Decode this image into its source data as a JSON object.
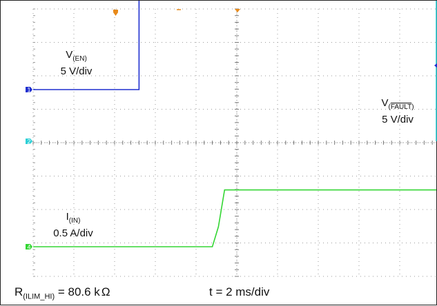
{
  "chart_data": {
    "type": "line",
    "grid": true,
    "x_divisions": 10,
    "y_divisions": 8,
    "series": [
      {
        "channel": "1",
        "color": "#1f2fcf",
        "label": {
          "main": "V",
          "sub": "(EN)",
          "scale": "5 V/div"
        },
        "x": [
          0,
          2.6,
          2.6,
          13
        ],
        "y": [
          0,
          0,
          7.5,
          7.5
        ]
      },
      {
        "channel": "2",
        "color": "#2ccfd6",
        "label": {
          "main": "V",
          "sub_open": "(",
          "sub_overline": "FAULT",
          "sub_close": ")",
          "scale": "5 V/div"
        },
        "x": [
          0,
          10.1,
          10.1,
          13
        ],
        "y": [
          5.1,
          5.1,
          0,
          0
        ]
      },
      {
        "channel": "4",
        "color": "#33d633",
        "label": {
          "main": "I",
          "sub": "(IN)",
          "scale": "0.5 A/div"
        },
        "x": [
          0,
          4.4,
          4.55,
          4.7,
          13
        ],
        "y": [
          0,
          0,
          0.6,
          1.7,
          1.7
        ]
      }
    ],
    "footer": {
      "r_main": "R",
      "r_sub": "(ILIM_HI)",
      "r_value": " = 80.6 k",
      "r_unit": "Ω",
      "timebase": "t = 2 ms/div"
    }
  }
}
